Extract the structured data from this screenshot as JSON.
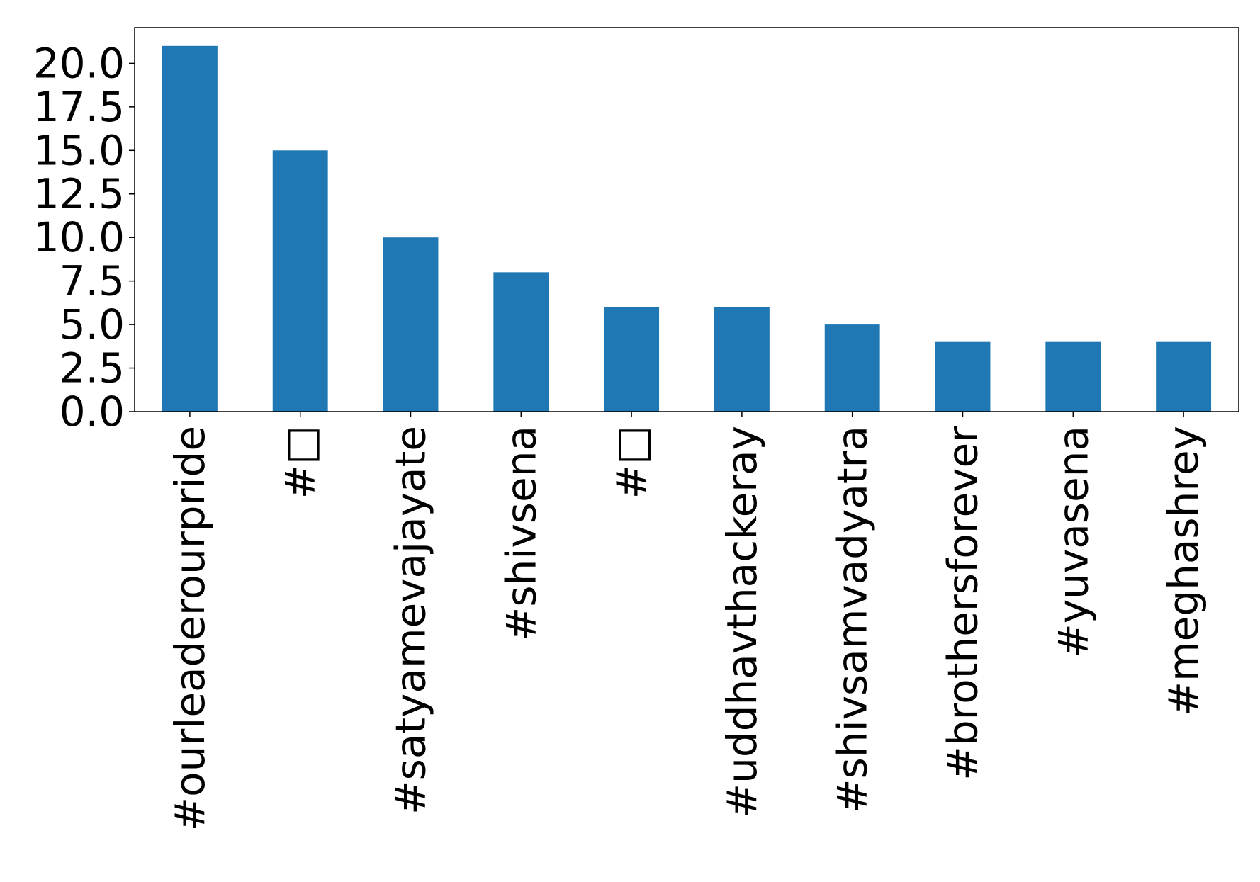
{
  "chart_data": {
    "type": "bar",
    "title": "",
    "xlabel": "",
    "ylabel": "",
    "categories": [
      "#ourleaderourpride",
      "#□",
      "#satyamevajayate",
      "#shivsena",
      "#□",
      "#uddhavthackeray",
      "#shivsamvadyatra",
      "#brothersforever",
      "#yuvasena",
      "#meghashrey"
    ],
    "values": [
      21,
      15,
      10,
      8,
      6,
      6,
      5,
      4,
      4,
      4
    ],
    "ylim": [
      0,
      22.05
    ],
    "yticks": [
      0.0,
      2.5,
      5.0,
      7.5,
      10.0,
      12.5,
      15.0,
      17.5,
      20.0
    ],
    "ytick_labels": [
      "0.0",
      "2.5",
      "5.0",
      "7.5",
      "10.0",
      "12.5",
      "15.0",
      "17.5",
      "20.0"
    ],
    "bar_color": "#1f77b4",
    "grid": false,
    "legend": "none"
  }
}
